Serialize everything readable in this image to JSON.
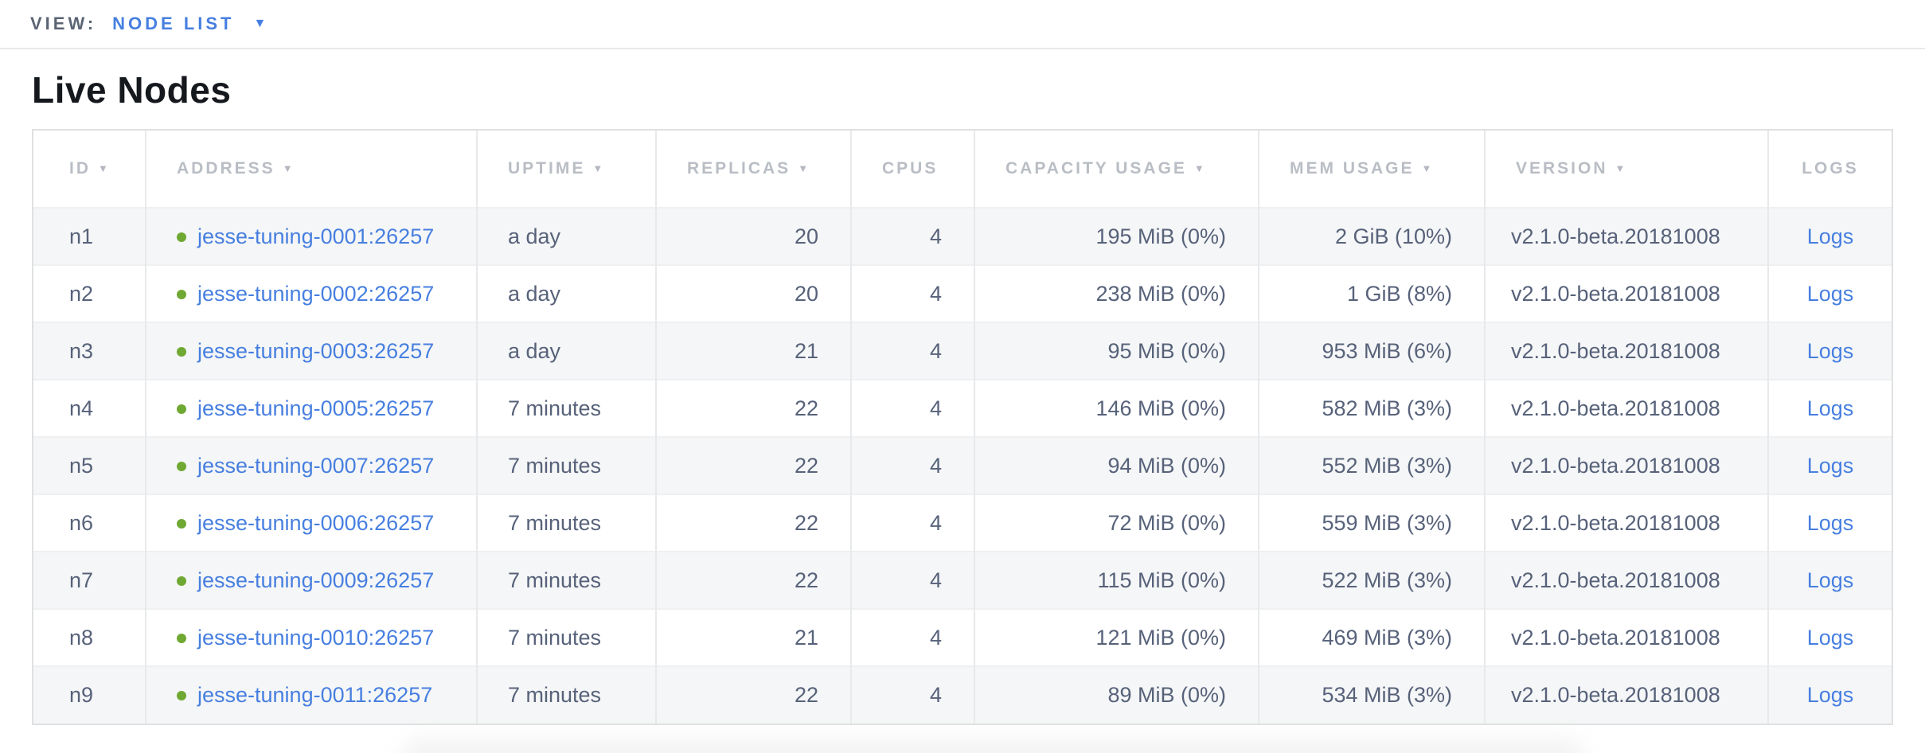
{
  "view_bar": {
    "label": "VIEW:",
    "selected": "NODE LIST"
  },
  "icons": {
    "dropdown_caret": "▼",
    "sort_desc_arrow": "▼",
    "live_status_dot": "green-circle"
  },
  "colors": {
    "link_blue": "#477fe0",
    "status_green": "#6fa832",
    "header_text_gray": "#b9bdc4",
    "body_text_slate": "#57627a",
    "row_stripe": "#f5f6f7"
  },
  "page": {
    "title": "Live Nodes"
  },
  "table": {
    "columns": [
      {
        "label": "ID",
        "sortable": true
      },
      {
        "label": "ADDRESS",
        "sortable": true
      },
      {
        "label": "UPTIME",
        "sortable": true
      },
      {
        "label": "REPLICAS",
        "sortable": true
      },
      {
        "label": "CPUS",
        "sortable": false
      },
      {
        "label": "CAPACITY USAGE",
        "sortable": true
      },
      {
        "label": "MEM USAGE",
        "sortable": true
      },
      {
        "label": "VERSION",
        "sortable": true
      },
      {
        "label": "LOGS",
        "sortable": false
      }
    ],
    "rows": [
      {
        "id": "n1",
        "address": "jesse-tuning-0001:26257",
        "uptime": "a day",
        "replicas": "20",
        "cpus": "4",
        "capacity": "195 MiB (0%)",
        "mem": "2 GiB (10%)",
        "version": "v2.1.0-beta.20181008",
        "logs": "Logs"
      },
      {
        "id": "n2",
        "address": "jesse-tuning-0002:26257",
        "uptime": "a day",
        "replicas": "20",
        "cpus": "4",
        "capacity": "238 MiB (0%)",
        "mem": "1 GiB (8%)",
        "version": "v2.1.0-beta.20181008",
        "logs": "Logs"
      },
      {
        "id": "n3",
        "address": "jesse-tuning-0003:26257",
        "uptime": "a day",
        "replicas": "21",
        "cpus": "4",
        "capacity": "95 MiB (0%)",
        "mem": "953 MiB (6%)",
        "version": "v2.1.0-beta.20181008",
        "logs": "Logs"
      },
      {
        "id": "n4",
        "address": "jesse-tuning-0005:26257",
        "uptime": "7 minutes",
        "replicas": "22",
        "cpus": "4",
        "capacity": "146 MiB (0%)",
        "mem": "582 MiB (3%)",
        "version": "v2.1.0-beta.20181008",
        "logs": "Logs"
      },
      {
        "id": "n5",
        "address": "jesse-tuning-0007:26257",
        "uptime": "7 minutes",
        "replicas": "22",
        "cpus": "4",
        "capacity": "94 MiB (0%)",
        "mem": "552 MiB (3%)",
        "version": "v2.1.0-beta.20181008",
        "logs": "Logs"
      },
      {
        "id": "n6",
        "address": "jesse-tuning-0006:26257",
        "uptime": "7 minutes",
        "replicas": "22",
        "cpus": "4",
        "capacity": "72 MiB (0%)",
        "mem": "559 MiB (3%)",
        "version": "v2.1.0-beta.20181008",
        "logs": "Logs"
      },
      {
        "id": "n7",
        "address": "jesse-tuning-0009:26257",
        "uptime": "7 minutes",
        "replicas": "22",
        "cpus": "4",
        "capacity": "115 MiB (0%)",
        "mem": "522 MiB (3%)",
        "version": "v2.1.0-beta.20181008",
        "logs": "Logs"
      },
      {
        "id": "n8",
        "address": "jesse-tuning-0010:26257",
        "uptime": "7 minutes",
        "replicas": "21",
        "cpus": "4",
        "capacity": "121 MiB (0%)",
        "mem": "469 MiB (3%)",
        "version": "v2.1.0-beta.20181008",
        "logs": "Logs"
      },
      {
        "id": "n9",
        "address": "jesse-tuning-0011:26257",
        "uptime": "7 minutes",
        "replicas": "22",
        "cpus": "4",
        "capacity": "89 MiB (0%)",
        "mem": "534 MiB (3%)",
        "version": "v2.1.0-beta.20181008",
        "logs": "Logs"
      }
    ]
  }
}
